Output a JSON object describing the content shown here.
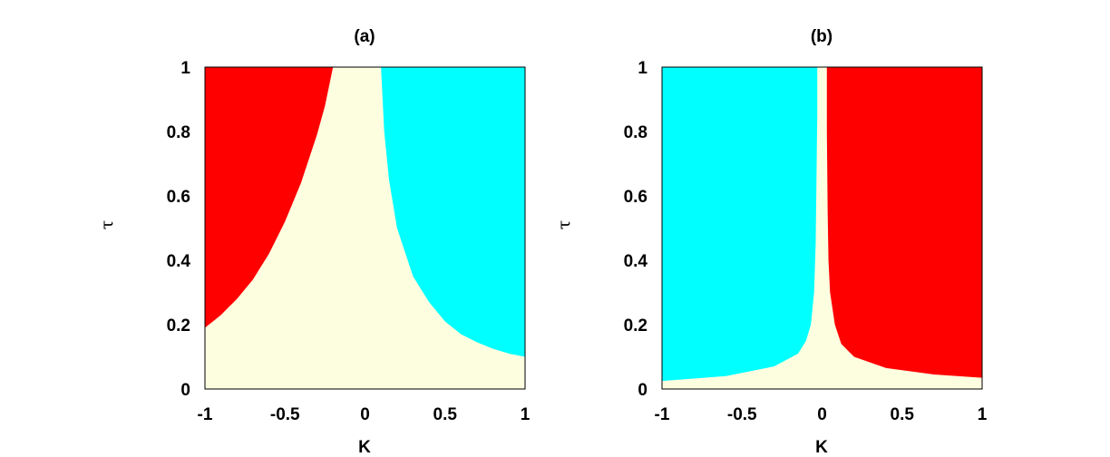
{
  "colors": {
    "red": "#ff0000",
    "cyan": "#00ffff",
    "cream": "#fdfde0",
    "frame": "#000000"
  },
  "chart_data": [
    {
      "type": "area",
      "title": "(a)",
      "xlabel": "K",
      "ylabel": "τ",
      "xlim": [
        -1,
        1
      ],
      "ylim": [
        0,
        1
      ],
      "xticks": [
        "-1",
        "-0.5",
        "0",
        "0.5",
        "1"
      ],
      "yticks": [
        "0",
        "0.2",
        "0.4",
        "0.6",
        "0.8",
        "1"
      ],
      "grid": false,
      "background_region": "cream",
      "regions": [
        {
          "color": "red",
          "side": "left",
          "boundary": [
            [
              -1,
              0.19
            ],
            [
              -0.9,
              0.23
            ],
            [
              -0.8,
              0.28
            ],
            [
              -0.7,
              0.34
            ],
            [
              -0.6,
              0.42
            ],
            [
              -0.5,
              0.52
            ],
            [
              -0.4,
              0.64
            ],
            [
              -0.3,
              0.79
            ],
            [
              -0.25,
              0.88
            ],
            [
              -0.2,
              1.0
            ]
          ]
        },
        {
          "color": "cyan",
          "side": "right",
          "boundary": [
            [
              0.1,
              1.0
            ],
            [
              0.12,
              0.8
            ],
            [
              0.15,
              0.65
            ],
            [
              0.2,
              0.5
            ],
            [
              0.3,
              0.35
            ],
            [
              0.4,
              0.27
            ],
            [
              0.5,
              0.21
            ],
            [
              0.6,
              0.17
            ],
            [
              0.7,
              0.145
            ],
            [
              0.8,
              0.125
            ],
            [
              0.9,
              0.11
            ],
            [
              1.0,
              0.1
            ]
          ]
        }
      ]
    },
    {
      "type": "area",
      "title": "(b)",
      "xlabel": "K",
      "ylabel": "τ",
      "xlim": [
        -1,
        1
      ],
      "ylim": [
        0,
        1
      ],
      "xticks": [
        "-1",
        "-0.5",
        "0",
        "0.5",
        "1"
      ],
      "yticks": [
        "0",
        "0.2",
        "0.4",
        "0.6",
        "0.8",
        "1"
      ],
      "grid": false,
      "background_region": "cream",
      "regions": [
        {
          "color": "cyan",
          "side": "left",
          "boundary": [
            [
              -1,
              0.025
            ],
            [
              -0.6,
              0.04
            ],
            [
              -0.3,
              0.07
            ],
            [
              -0.15,
              0.11
            ],
            [
              -0.1,
              0.15
            ],
            [
              -0.07,
              0.2
            ],
            [
              -0.05,
              0.3
            ],
            [
              -0.04,
              0.45
            ],
            [
              -0.035,
              0.65
            ],
            [
              -0.03,
              0.85
            ],
            [
              -0.03,
              1.0
            ]
          ]
        },
        {
          "color": "red",
          "side": "right",
          "boundary": [
            [
              0.03,
              1.0
            ],
            [
              0.03,
              0.8
            ],
            [
              0.035,
              0.55
            ],
            [
              0.04,
              0.4
            ],
            [
              0.05,
              0.3
            ],
            [
              0.08,
              0.2
            ],
            [
              0.12,
              0.14
            ],
            [
              0.2,
              0.1
            ],
            [
              0.4,
              0.065
            ],
            [
              0.7,
              0.045
            ],
            [
              1.0,
              0.035
            ]
          ]
        }
      ]
    }
  ]
}
